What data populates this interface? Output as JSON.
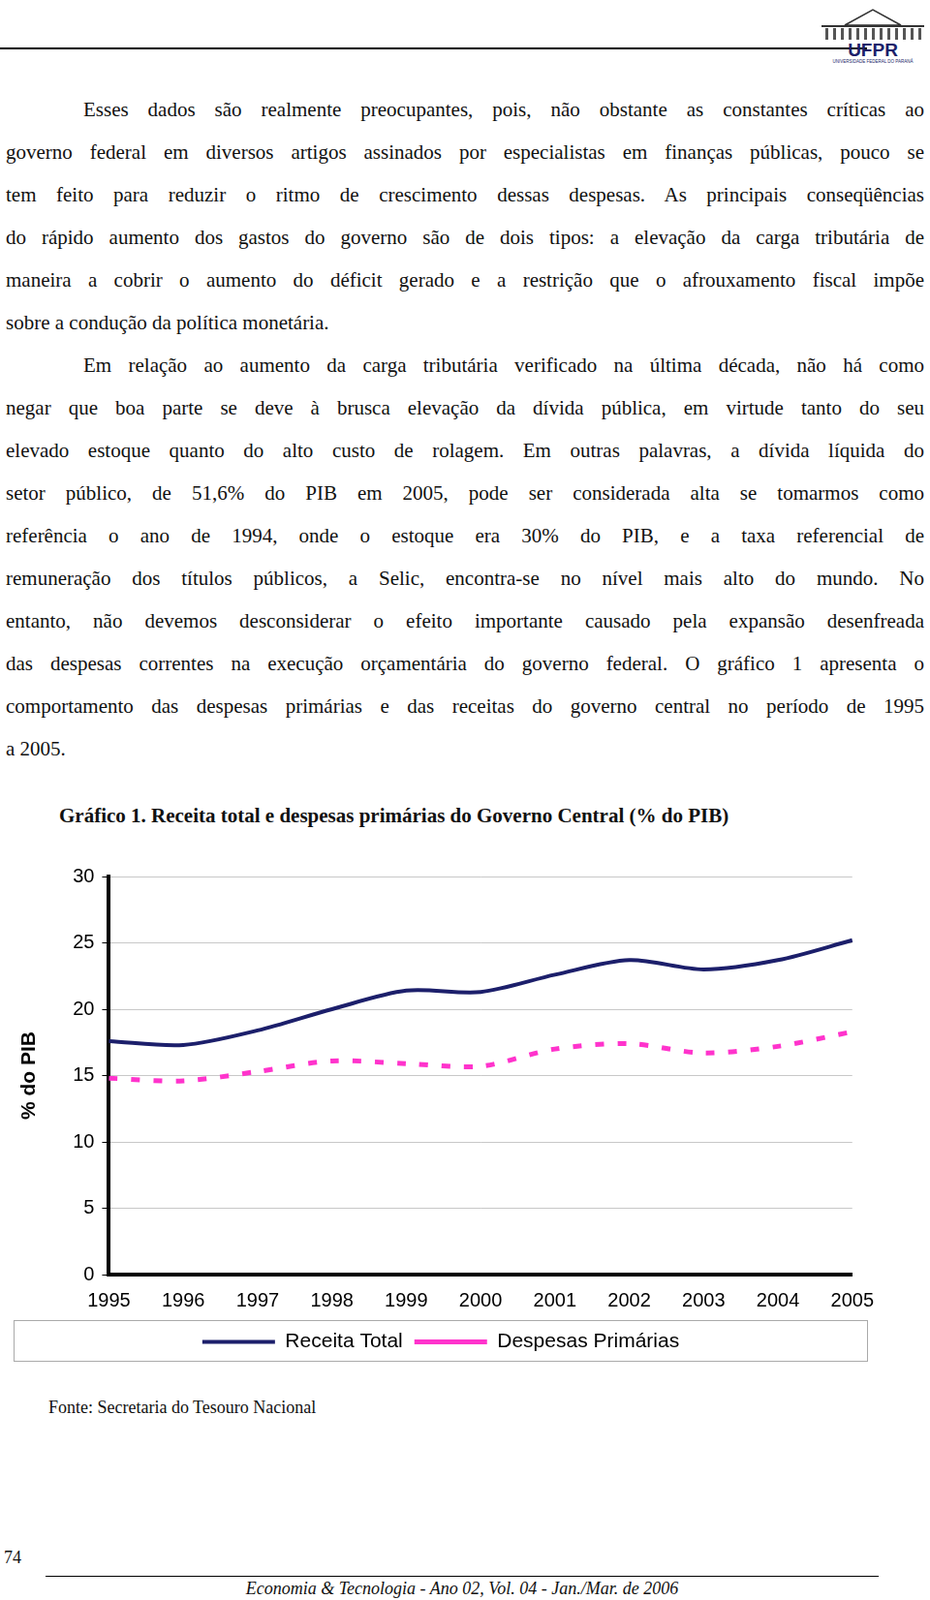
{
  "header": {
    "logo": "UFPR",
    "logo_subtitle": "UNIVERSIDADE FEDERAL DO PARANÁ"
  },
  "paragraphs": [
    [
      "Esses dados são realmente preocupantes, pois, não obstante as constantes críticas ao",
      "governo federal em diversos artigos assinados por especialistas em finanças públicas, pouco se",
      "tem feito para reduzir o ritmo de crescimento dessas despesas. As principais conseqüências",
      "do rápido aumento dos gastos do governo são de dois tipos: a elevação da carga tributária de",
      "maneira a cobrir o aumento do déficit gerado e a restrição que o afrouxamento fiscal impõe",
      "sobre a condução da política monetária."
    ],
    [
      "Em relação ao aumento da carga tributária verificado na última década, não há como",
      "negar que boa parte se deve à brusca elevação da dívida pública, em virtude tanto do seu",
      "elevado estoque quanto do alto custo de rolagem. Em outras palavras, a dívida líquida do",
      "setor público, de 51,6% do PIB em 2005, pode ser considerada alta se tomarmos como",
      "referência o ano de 1994, onde o estoque era 30% do PIB, e a taxa referencial de",
      "remuneração dos títulos públicos, a Selic, encontra-se no nível mais alto do mundo. No",
      "entanto, não devemos desconsiderar o efeito importante causado pela expansão desenfreada",
      "das despesas correntes na execução orçamentária do governo federal. O gráfico 1 apresenta o",
      "comportamento das despesas primárias e das receitas do governo central no período de 1995",
      "a 2005."
    ]
  ],
  "figure_title": "Gráfico 1. Receita total e despesas primárias do Governo Central (% do PIB)",
  "chart_data": {
    "type": "line",
    "y_label": "% do PIB",
    "categories": [
      "1995",
      "1996",
      "1997",
      "1998",
      "1999",
      "2000",
      "2001",
      "2002",
      "2003",
      "2004",
      "2005"
    ],
    "series": [
      {
        "name": "Receita Total",
        "color": "#1c1f6b",
        "line_style": "solid",
        "values": [
          17.6,
          17.3,
          18.4,
          20.0,
          21.4,
          21.3,
          22.6,
          23.7,
          23.0,
          23.7,
          25.2
        ]
      },
      {
        "name": "Despesas Primárias",
        "color": "#ff33cc",
        "line_style": "dashed",
        "values": [
          14.8,
          14.6,
          15.3,
          16.1,
          15.9,
          15.7,
          17.0,
          17.4,
          16.7,
          17.2,
          18.3
        ]
      }
    ],
    "ylim": [
      0,
      30
    ],
    "yticks": [
      0,
      5,
      10,
      15,
      20,
      25,
      30
    ],
    "grid": true,
    "legend": "bottom"
  },
  "source": "Fonte: Secretaria do Tesouro Nacional",
  "page_number": 74,
  "footer": "Economia & Tecnologia - Ano 02, Vol. 04 - Jan./Mar. de 2006"
}
